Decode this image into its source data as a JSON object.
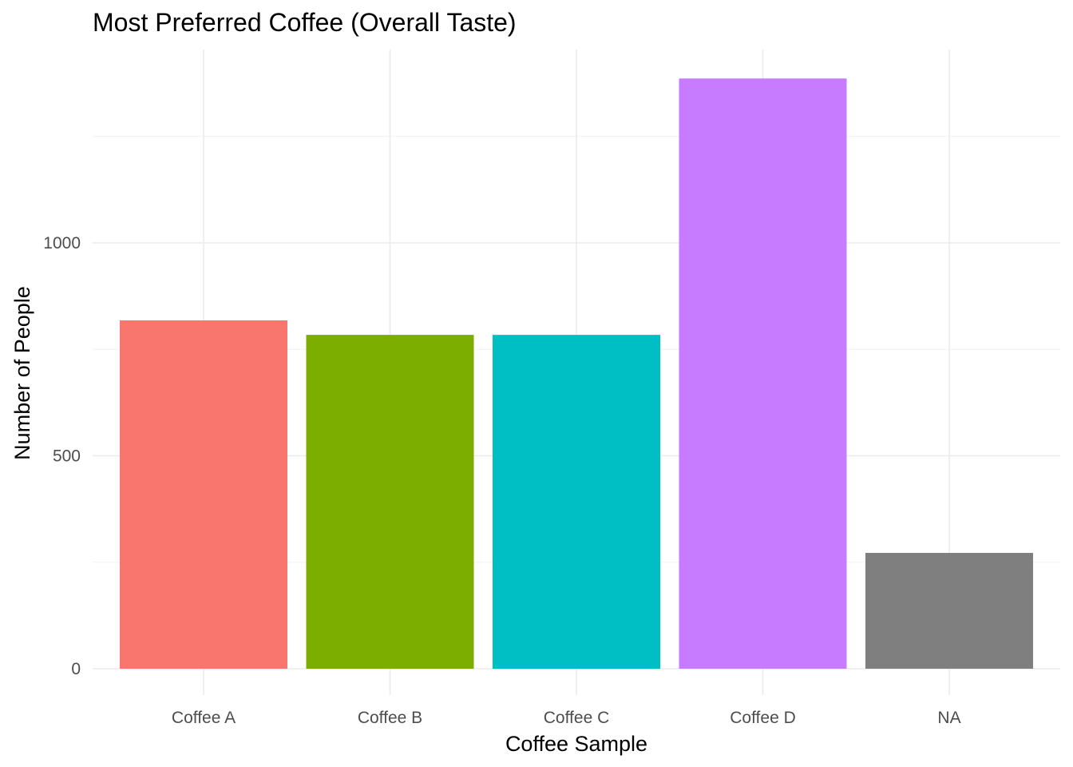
{
  "chart_data": {
    "type": "bar",
    "title": "Most Preferred Coffee (Overall Taste)",
    "xlabel": "Coffee Sample",
    "ylabel": "Number of People",
    "categories": [
      "Coffee A",
      "Coffee B",
      "Coffee C",
      "Coffee D",
      "NA"
    ],
    "values": [
      818,
      784,
      784,
      1386,
      272
    ],
    "colors": [
      "#F8766D",
      "#7CAE00",
      "#00BFC4",
      "#C77CFF",
      "#7F7F7F"
    ],
    "ylim": [
      0,
      1450
    ],
    "yticks": [
      0,
      500,
      1000
    ],
    "grid": true,
    "legend": "none"
  }
}
